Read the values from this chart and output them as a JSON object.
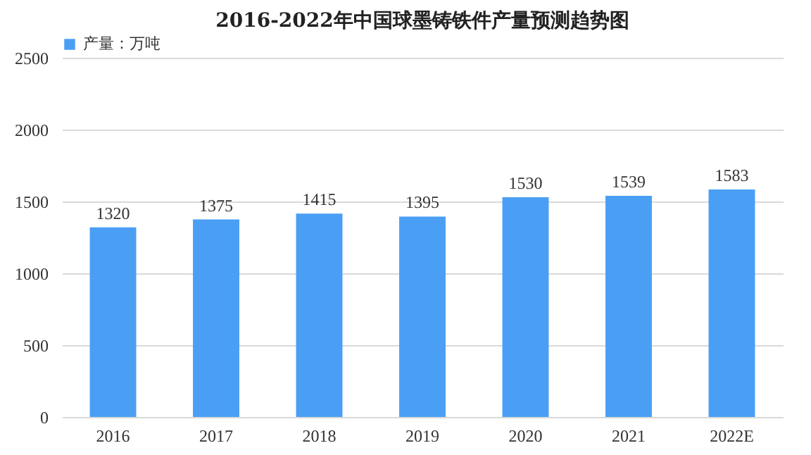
{
  "chart_data": {
    "type": "bar",
    "title": "2016-2022年中国球墨铸铁件产量预测趋势图",
    "categories": [
      "2016",
      "2017",
      "2018",
      "2019",
      "2020",
      "2021",
      "2022E"
    ],
    "series": [
      {
        "name": "产量：万吨",
        "color": "#4a9ff5",
        "values": [
          1320,
          1375,
          1415,
          1395,
          1530,
          1539,
          1583
        ]
      }
    ],
    "ylim": [
      0,
      2500
    ],
    "yticks": [
      0,
      500,
      1000,
      1500,
      2000,
      2500
    ],
    "grid": "y",
    "legend": "top",
    "data_labels": true
  }
}
